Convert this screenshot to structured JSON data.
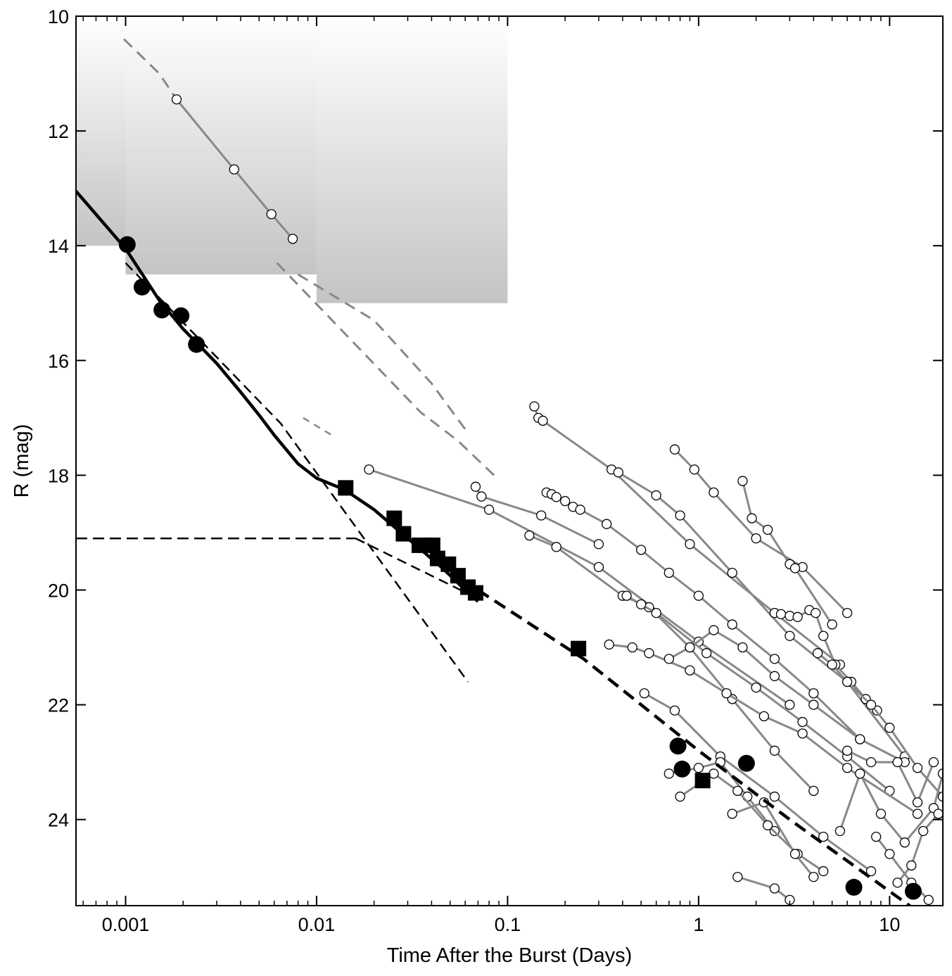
{
  "chart_data": {
    "type": "scatter",
    "title": "",
    "xlabel": "Time After the Burst  (Days)",
    "ylabel": "R  (mag)",
    "x_scale": "log",
    "xlim": [
      0.00055,
      19
    ],
    "ylim": [
      25.5,
      10
    ],
    "y_inverted": true,
    "grid": false,
    "x_ticks": [
      {
        "value": 0.001,
        "label": "0.001"
      },
      {
        "value": 0.01,
        "label": "0.01"
      },
      {
        "value": 0.1,
        "label": "0.1"
      },
      {
        "value": 1,
        "label": "1"
      },
      {
        "value": 10,
        "label": "10"
      }
    ],
    "y_ticks": [
      {
        "value": 10,
        "label": "10"
      },
      {
        "value": 12,
        "label": "12"
      },
      {
        "value": 14,
        "label": "14"
      },
      {
        "value": 16,
        "label": "16"
      },
      {
        "value": 18,
        "label": "18"
      },
      {
        "value": 20,
        "label": "20"
      },
      {
        "value": 22,
        "label": "22"
      },
      {
        "value": 24,
        "label": "24"
      }
    ],
    "colors": {
      "main": "#000000",
      "others": "#888888",
      "shade_top": "#ffffff",
      "shade_bottom": "#c4c4c4"
    },
    "shaded_limits": [
      {
        "x": [
          0.00055,
          0.001
        ],
        "y_top": 10,
        "y_bottom": 14.0
      },
      {
        "x": [
          0.001,
          0.01
        ],
        "y_top": 10,
        "y_bottom": 14.5
      },
      {
        "x": [
          0.01,
          0.1
        ],
        "y_top": 10,
        "y_bottom": 15.0
      }
    ],
    "main_model_curve": [
      [
        0.00055,
        13.05
      ],
      [
        0.001,
        14.05
      ],
      [
        0.0015,
        14.95
      ],
      [
        0.002,
        15.45
      ],
      [
        0.003,
        16.05
      ],
      [
        0.004,
        16.55
      ],
      [
        0.005,
        16.95
      ],
      [
        0.006,
        17.3
      ],
      [
        0.008,
        17.8
      ],
      [
        0.01,
        18.05
      ],
      [
        0.014,
        18.25
      ],
      [
        0.02,
        18.6
      ],
      [
        0.03,
        19.1
      ],
      [
        0.045,
        19.6
      ],
      [
        0.06,
        20.0
      ],
      [
        0.07,
        20.2
      ]
    ],
    "reverse_shock_line": [
      [
        0.001,
        14.3
      ],
      [
        0.0065,
        17.1
      ],
      [
        0.062,
        21.6
      ]
    ],
    "plateau_line": [
      [
        0.00055,
        19.1
      ],
      [
        0.016,
        19.1
      ]
    ],
    "forward_shock_line": [
      [
        0.016,
        19.1
      ],
      [
        0.07,
        20.15
      ]
    ],
    "late_decay_line": [
      [
        0.07,
        20.0
      ],
      [
        0.25,
        21.2
      ],
      [
        1,
        22.8
      ],
      [
        3,
        24.0
      ],
      [
        14,
        25.6
      ]
    ],
    "early_afterglow_faint_line": [
      [
        0.0085,
        17.0
      ],
      [
        0.012,
        17.3
      ]
    ],
    "main_circles": [
      [
        0.00102,
        13.98
      ],
      [
        0.00122,
        14.72
      ],
      [
        0.00155,
        15.12
      ],
      [
        0.00195,
        15.22
      ],
      [
        0.00235,
        15.72
      ],
      [
        0.78,
        22.72
      ],
      [
        0.82,
        23.12
      ],
      [
        1.78,
        23.02
      ],
      [
        6.5,
        25.18
      ],
      [
        13.3,
        25.25
      ]
    ],
    "main_squares": [
      [
        0.0142,
        18.22
      ],
      [
        0.0255,
        18.75
      ],
      [
        0.0285,
        19.02
      ],
      [
        0.0345,
        19.22
      ],
      [
        0.0405,
        19.22
      ],
      [
        0.043,
        19.45
      ],
      [
        0.049,
        19.55
      ],
      [
        0.055,
        19.75
      ],
      [
        0.062,
        19.95
      ],
      [
        0.068,
        20.05
      ],
      [
        0.235,
        21.02
      ],
      [
        1.05,
        23.32
      ]
    ],
    "other_bursts": [
      {
        "points": [
          [
            0.00185,
            11.45
          ],
          [
            0.0037,
            12.67
          ],
          [
            0.0058,
            13.45
          ],
          [
            0.0075,
            13.88
          ]
        ],
        "dashed_ext": [
          [
            0.00098,
            10.4
          ],
          [
            0.0015,
            11.0
          ]
        ]
      },
      {
        "points": [
          [
            0.0062,
            14.3
          ],
          [
            0.035,
            16.9
          ],
          [
            0.055,
            17.4
          ],
          [
            0.085,
            18.0
          ]
        ],
        "dashed": true
      },
      {
        "points": [
          [
            0.008,
            14.5
          ],
          [
            0.02,
            15.3
          ],
          [
            0.04,
            16.4
          ],
          [
            0.06,
            17.2
          ]
        ],
        "dashed": true
      },
      {
        "points": [
          [
            0.0188,
            17.9
          ],
          [
            0.08,
            18.6
          ],
          [
            0.3,
            19.6
          ],
          [
            1.0,
            20.9
          ],
          [
            3.0,
            22.0
          ]
        ]
      },
      {
        "points": [
          [
            0.068,
            18.2
          ],
          [
            0.073,
            18.37
          ],
          [
            0.15,
            18.7
          ],
          [
            0.3,
            19.2
          ]
        ]
      },
      {
        "points": [
          [
            0.138,
            16.8
          ],
          [
            0.145,
            17.0
          ],
          [
            0.153,
            17.05
          ],
          [
            0.35,
            17.9
          ],
          [
            0.9,
            19.2
          ],
          [
            2.5,
            20.4
          ],
          [
            5.5,
            21.3
          ]
        ]
      },
      {
        "points": [
          [
            0.16,
            18.3
          ],
          [
            0.17,
            18.33
          ],
          [
            0.18,
            18.38
          ],
          [
            0.2,
            18.45
          ],
          [
            0.22,
            18.55
          ],
          [
            0.24,
            18.6
          ],
          [
            0.33,
            18.85
          ],
          [
            0.5,
            19.3
          ],
          [
            0.7,
            19.7
          ],
          [
            1.0,
            20.1
          ],
          [
            1.5,
            20.6
          ],
          [
            2.5,
            21.2
          ],
          [
            4,
            21.8
          ],
          [
            7,
            22.6
          ]
        ]
      },
      {
        "points": [
          [
            0.38,
            17.95
          ],
          [
            0.6,
            18.35
          ],
          [
            0.8,
            18.7
          ],
          [
            1.5,
            19.7
          ],
          [
            3,
            20.8
          ],
          [
            6,
            21.6
          ],
          [
            12,
            22.9
          ]
        ]
      },
      {
        "points": [
          [
            0.75,
            17.55
          ],
          [
            0.95,
            17.9
          ],
          [
            1.2,
            18.3
          ],
          [
            2.0,
            19.1
          ],
          [
            3.5,
            19.6
          ],
          [
            6,
            20.4
          ]
        ]
      },
      {
        "points": [
          [
            1.7,
            18.1
          ],
          [
            1.9,
            18.75
          ],
          [
            2.3,
            18.95
          ],
          [
            3.0,
            19.55
          ],
          [
            3.2,
            19.62
          ],
          [
            5,
            20.6
          ]
        ]
      },
      {
        "points": [
          [
            0.13,
            19.05
          ],
          [
            0.18,
            19.25
          ],
          [
            0.4,
            20.1
          ],
          [
            0.55,
            20.3
          ],
          [
            0.9,
            21.0
          ],
          [
            1.5,
            21.9
          ],
          [
            2.5,
            22.8
          ],
          [
            4,
            23.5
          ]
        ]
      },
      {
        "points": [
          [
            0.42,
            20.1
          ],
          [
            0.5,
            20.25
          ],
          [
            0.6,
            20.4
          ],
          [
            1.1,
            21.1
          ],
          [
            2.0,
            21.7
          ],
          [
            3.5,
            22.3
          ],
          [
            6,
            22.9
          ],
          [
            10,
            23.5
          ]
        ]
      },
      {
        "points": [
          [
            0.34,
            20.95
          ],
          [
            0.45,
            21.0
          ],
          [
            0.55,
            21.1
          ],
          [
            0.9,
            21.4
          ],
          [
            1.4,
            21.8
          ],
          [
            2.2,
            22.2
          ],
          [
            3.5,
            22.5
          ],
          [
            6,
            23.1
          ],
          [
            14,
            23.9
          ]
        ]
      },
      {
        "points": [
          [
            0.7,
            21.2
          ],
          [
            0.9,
            21.0
          ],
          [
            1.2,
            20.7
          ],
          [
            1.7,
            21.0
          ],
          [
            2.5,
            21.5
          ],
          [
            4,
            22.0
          ],
          [
            7,
            22.6
          ],
          [
            12,
            23.0
          ]
        ]
      },
      {
        "points": [
          [
            2.5,
            20.4
          ],
          [
            2.7,
            20.42
          ],
          [
            3.0,
            20.45
          ],
          [
            3.3,
            20.47
          ],
          [
            3.8,
            20.35
          ],
          [
            4.1,
            20.4
          ],
          [
            4.5,
            20.8
          ],
          [
            5.2,
            21.3
          ],
          [
            6.3,
            21.6
          ],
          [
            7.5,
            21.9
          ],
          [
            8.6,
            22.1
          ]
        ]
      },
      {
        "points": [
          [
            4.2,
            21.1
          ],
          [
            5,
            21.3
          ],
          [
            6,
            21.6
          ],
          [
            8,
            22.0
          ],
          [
            10,
            22.4
          ],
          [
            14,
            23.1
          ],
          [
            19,
            23.6
          ]
        ]
      },
      {
        "points": [
          [
            0.52,
            21.8
          ],
          [
            0.75,
            22.1
          ],
          [
            1.3,
            22.9
          ],
          [
            2.5,
            23.6
          ],
          [
            4.5,
            24.3
          ],
          [
            8,
            24.9
          ]
        ]
      },
      {
        "points": [
          [
            0.7,
            23.2
          ],
          [
            1.0,
            23.1
          ],
          [
            1.3,
            23.0
          ],
          [
            1.8,
            23.6
          ],
          [
            2.5,
            24.2
          ]
        ]
      },
      {
        "points": [
          [
            0.8,
            23.6
          ],
          [
            1.2,
            23.2
          ],
          [
            1.6,
            23.5
          ],
          [
            2.3,
            24.1
          ],
          [
            3.3,
            24.6
          ],
          [
            4.5,
            24.9
          ]
        ]
      },
      {
        "points": [
          [
            1.5,
            23.9
          ],
          [
            2.2,
            23.7
          ],
          [
            3.2,
            24.6
          ],
          [
            4.0,
            25.0
          ]
        ]
      },
      {
        "points": [
          [
            1.6,
            25.0
          ],
          [
            2.5,
            25.2
          ],
          [
            3,
            25.4
          ]
        ]
      },
      {
        "points": [
          [
            6,
            22.8
          ],
          [
            8,
            23.0
          ],
          [
            11,
            23.0
          ],
          [
            14,
            23.7
          ],
          [
            17,
            23.0
          ]
        ]
      },
      {
        "points": [
          [
            5.5,
            24.2
          ],
          [
            7,
            23.2
          ],
          [
            9,
            23.9
          ],
          [
            12,
            24.4
          ],
          [
            17,
            23.8
          ],
          [
            19,
            23.2
          ]
        ]
      },
      {
        "points": [
          [
            11,
            25.1
          ],
          [
            13,
            24.8
          ],
          [
            15,
            24.2
          ],
          [
            18,
            23.9
          ]
        ]
      },
      {
        "points": [
          [
            8.5,
            24.3
          ],
          [
            10,
            24.6
          ],
          [
            13,
            25.1
          ],
          [
            16,
            25.4
          ]
        ]
      }
    ]
  }
}
